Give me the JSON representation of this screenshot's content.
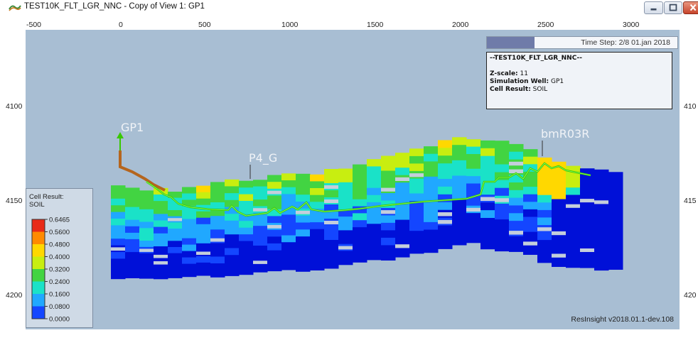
{
  "window": {
    "title": "TEST10K_FLT_LGR_NNC - Copy of View 1: GP1",
    "icon": "resinsight-app-icon",
    "controls": [
      "minimize-icon",
      "maximize-icon",
      "close-icon"
    ]
  },
  "axes": {
    "x_ticks": [
      "-500",
      "0",
      "500",
      "1000",
      "1500",
      "2000",
      "2500",
      "3000"
    ],
    "y_ticks_left": [
      "4100",
      "4150",
      "4200"
    ],
    "y_ticks_right": [
      "410",
      "415",
      "420"
    ]
  },
  "time_step": {
    "text": "Time Step: 2/8 01.jan 2018",
    "progress": 0.25
  },
  "info": {
    "case_name": "--TEST10K_FLT_LGR_NNC--",
    "z_scale_label": "Z-scale:",
    "z_scale_value": "11",
    "sim_well_label": "Simulation Well:",
    "sim_well_value": "GP1",
    "cell_result_label": "Cell Result:",
    "cell_result_value": "SOIL"
  },
  "legend": {
    "title_line1": "Cell Result:",
    "title_line2": "SOIL",
    "labels": [
      "0.6465",
      "0.5600",
      "0.4800",
      "0.4000",
      "0.3200",
      "0.2400",
      "0.1600",
      "0.0800",
      "0.0000"
    ],
    "colors": [
      "#e82a18",
      "#ff8a00",
      "#ffd800",
      "#c8ee10",
      "#42d442",
      "#1ae2c8",
      "#20a8ff",
      "#1446ff",
      "#0010d8"
    ]
  },
  "wells": {
    "gp1": "GP1",
    "p4g": "P4_G",
    "bmr03r": "bmR03R"
  },
  "version": "ResInsight v2018.01.1-dev.108",
  "colors": {
    "background": "#a8bed3",
    "well_path_gp1": "#b5651d",
    "well_path_main": "#39c800",
    "timestep_bar": "#6f7ba9"
  }
}
